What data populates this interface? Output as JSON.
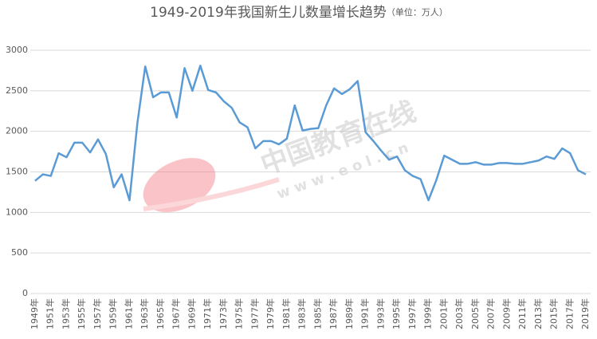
{
  "chart_data": {
    "type": "line",
    "title": "1949-2019年我国新生儿数量增长趋势",
    "subtitle": "（单位：万人）",
    "watermark": "中国教育在线",
    "watermark_url": "w w w . e o l . c n",
    "categories": [
      "1949年",
      null,
      "1951年",
      null,
      "1953年",
      null,
      "1955年",
      null,
      "1957年",
      null,
      "1959年",
      null,
      "1961年",
      null,
      "1963年",
      null,
      "1965年",
      null,
      "1967年",
      null,
      "1969年",
      null,
      "1971年",
      null,
      "1973年",
      null,
      "1975年",
      null,
      "1977年",
      null,
      "1979年",
      null,
      "1981年",
      null,
      "1983年",
      null,
      "1985年",
      null,
      "1987年",
      null,
      "1989年",
      null,
      "1991年",
      null,
      "1993年",
      null,
      "1995年",
      null,
      "1997年",
      null,
      "1999年",
      null,
      "2001年",
      null,
      "2003年",
      null,
      "2005年",
      null,
      "2007年",
      null,
      "2009年",
      null,
      "2011年",
      null,
      "2013年",
      null,
      "2015年",
      null,
      "2017年",
      null,
      "2019年"
    ],
    "values": [
      1390,
      1470,
      1450,
      1730,
      1680,
      1860,
      1860,
      1740,
      1900,
      1720,
      1310,
      1470,
      1150,
      2100,
      2800,
      2420,
      2480,
      2480,
      2170,
      2780,
      2500,
      2810,
      2510,
      2480,
      2370,
      2290,
      2110,
      2050,
      1790,
      1880,
      1880,
      1840,
      1910,
      2320,
      2010,
      2030,
      2040,
      2320,
      2530,
      2460,
      2520,
      2620,
      1990,
      1880,
      1760,
      1650,
      1690,
      1520,
      1450,
      1410,
      1150,
      1400,
      1700,
      1650,
      1600,
      1600,
      1620,
      1590,
      1590,
      1610,
      1610,
      1600,
      1600,
      1620,
      1640,
      1690,
      1660,
      1790,
      1730,
      1520,
      1470
    ],
    "color": "#5b9bd5",
    "ylim": [
      0,
      3000
    ],
    "yticks": [
      0,
      500,
      1000,
      1500,
      2000,
      2500,
      3000
    ],
    "grid": true
  }
}
